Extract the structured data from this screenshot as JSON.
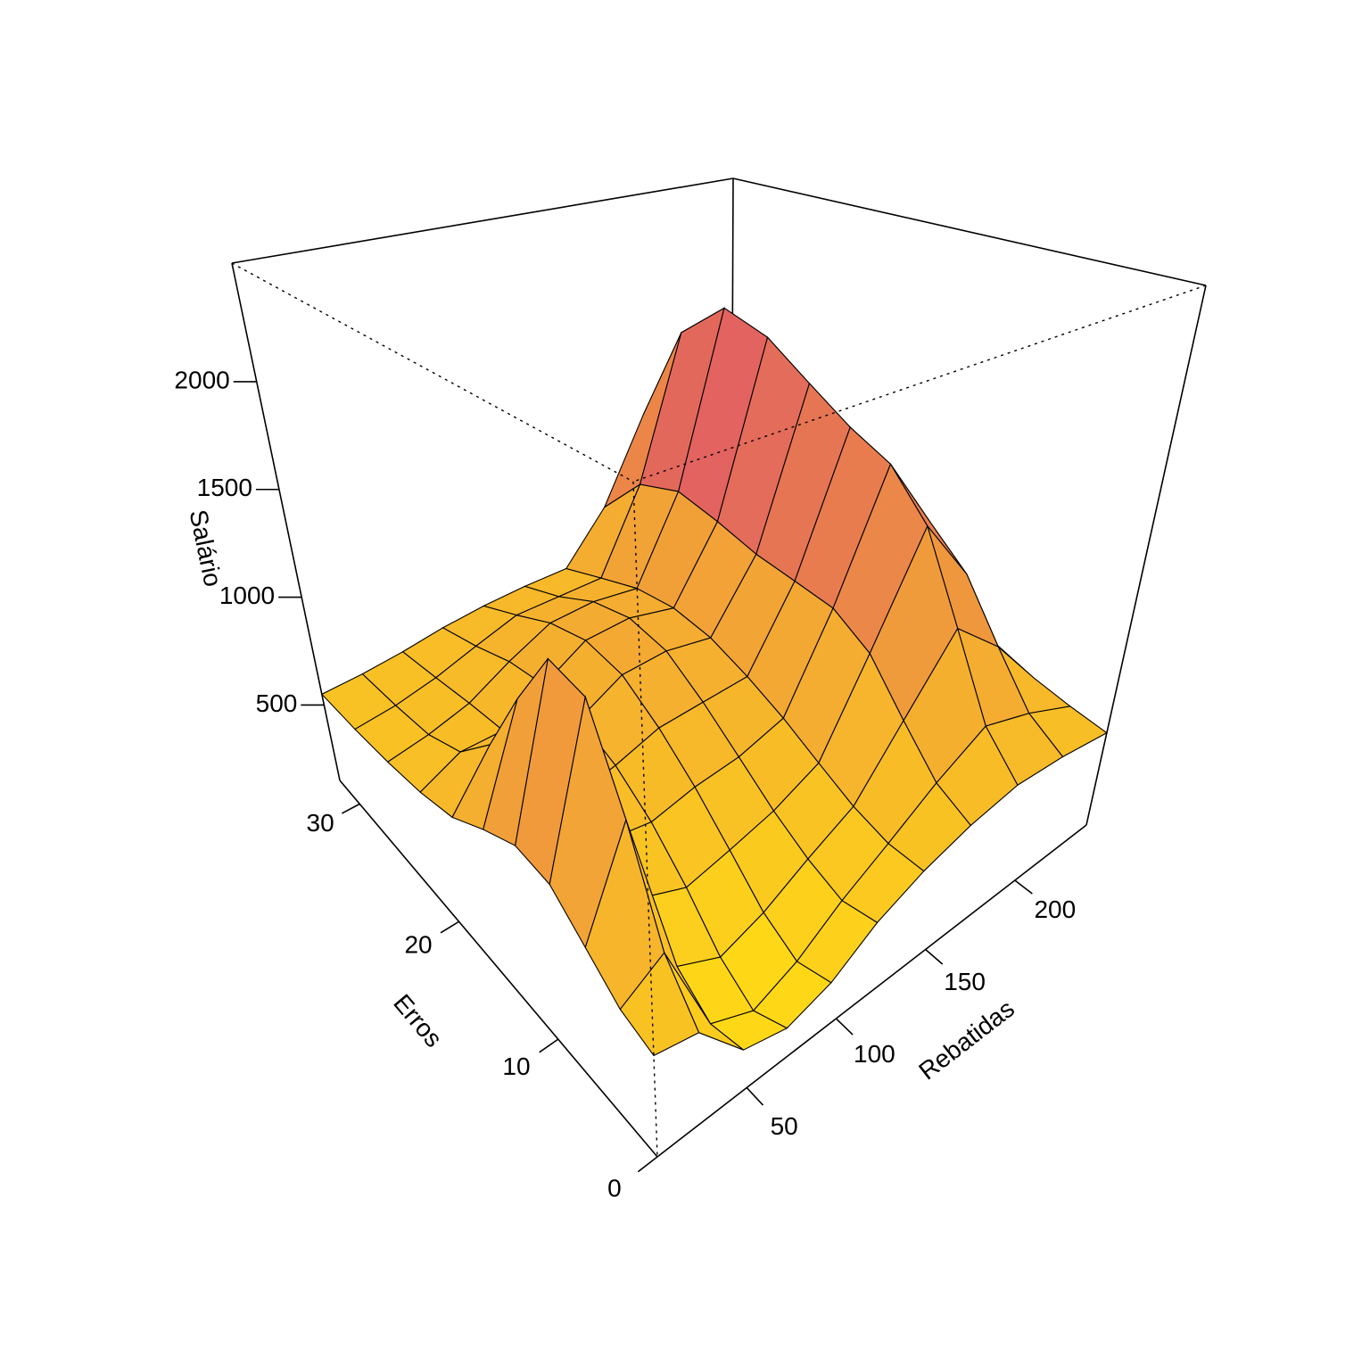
{
  "chart_data": {
    "type": "surface",
    "xlabel": "Rebatidas",
    "ylabel": "Erros",
    "zlabel": "Salário",
    "x": [
      0,
      24,
      48,
      72,
      96,
      120,
      144,
      168,
      192,
      216,
      240
    ],
    "y": [
      0,
      3.2,
      6.4,
      9.6,
      12.8,
      16,
      19.2,
      22.4,
      25.6,
      28.8,
      32
    ],
    "z": [
      [
        510,
        480,
        300,
        260,
        310,
        420,
        500,
        560,
        600,
        590,
        560
      ],
      [
        550,
        650,
        270,
        200,
        270,
        390,
        500,
        630,
        750,
        680,
        580
      ],
      [
        650,
        1030,
        360,
        280,
        340,
        440,
        540,
        790,
        1080,
        880,
        610
      ],
      [
        760,
        1390,
        500,
        430,
        470,
        520,
        610,
        980,
        1450,
        1120,
        660
      ],
      [
        780,
        1430,
        600,
        570,
        610,
        630,
        690,
        1080,
        1650,
        1270,
        690
      ],
      [
        710,
        1150,
        640,
        680,
        740,
        750,
        760,
        1100,
        1740,
        1360,
        700
      ],
      [
        620,
        830,
        660,
        750,
        850,
        860,
        820,
        1120,
        1870,
        1500,
        730
      ],
      [
        580,
        660,
        660,
        770,
        880,
        890,
        840,
        1170,
        2020,
        1580,
        730
      ],
      [
        560,
        590,
        640,
        740,
        830,
        840,
        810,
        1210,
        2090,
        1540,
        710
      ],
      [
        550,
        570,
        610,
        670,
        730,
        730,
        730,
        1130,
        1870,
        1350,
        670
      ],
      [
        550,
        560,
        580,
        610,
        630,
        640,
        640,
        880,
        1310,
        1000,
        610
      ]
    ],
    "xlim": [
      0,
      240
    ],
    "ylim": [
      0,
      32
    ],
    "zlim": [
      150,
      2550
    ],
    "xticks": [
      50,
      100,
      150,
      200
    ],
    "yticks": [
      0,
      10,
      20,
      30
    ],
    "zticks": [
      500,
      1000,
      1500,
      2000
    ],
    "colors": [
      "#ffdc14",
      "#ef963e",
      "#d5327f"
    ]
  }
}
